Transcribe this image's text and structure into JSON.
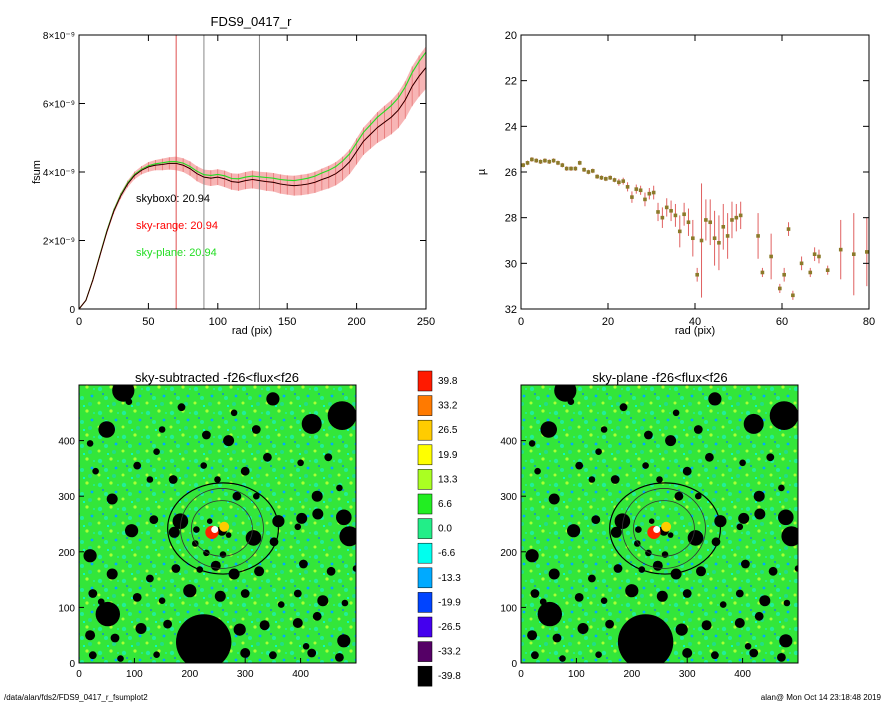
{
  "chart_data": [
    {
      "id": "profile",
      "type": "line",
      "title": "FDS9_0417_r",
      "xlabel": "rad (pix)",
      "ylabel": "fsum",
      "xlim": [
        0,
        250
      ],
      "ylim": [
        0,
        8e-09
      ],
      "xticks": [
        "0",
        "50",
        "100",
        "150",
        "200",
        "250"
      ],
      "yticks": [
        {
          "value": 0,
          "label": "0"
        },
        {
          "value": 2e-09,
          "label": "2×10⁻⁹"
        },
        {
          "value": 4e-09,
          "label": "4×10⁻⁹"
        },
        {
          "value": 6e-09,
          "label": "6×10⁻⁹"
        },
        {
          "value": 8e-09,
          "label": "8×10⁻⁹"
        }
      ],
      "vlines": [
        {
          "x": 70,
          "color": "#e05050"
        },
        {
          "x": 90,
          "color": "#888888"
        },
        {
          "x": 130,
          "color": "#888888"
        }
      ],
      "annotations": [
        {
          "text": "skybox0: 20.94",
          "color": "#000000"
        },
        {
          "text": "sky-range: 20.94",
          "color": "#ff0000"
        },
        {
          "text": "sky-plane: 20.94",
          "color": "#22dd22"
        }
      ],
      "series_x": [
        0,
        5,
        10,
        15,
        20,
        25,
        30,
        35,
        40,
        45,
        50,
        55,
        60,
        65,
        70,
        75,
        80,
        85,
        90,
        95,
        100,
        105,
        110,
        115,
        120,
        125,
        130,
        135,
        140,
        145,
        150,
        155,
        160,
        165,
        170,
        175,
        180,
        185,
        190,
        195,
        200,
        205,
        210,
        215,
        220,
        225,
        230,
        235,
        240,
        245,
        250
      ],
      "series": [
        {
          "color": "#000000",
          "values": [
            0.0,
            0.25,
            0.85,
            1.55,
            2.25,
            2.85,
            3.3,
            3.65,
            3.9,
            4.05,
            4.15,
            4.2,
            4.22,
            4.25,
            4.25,
            4.2,
            4.1,
            3.95,
            3.85,
            3.82,
            3.85,
            3.8,
            3.72,
            3.7,
            3.75,
            3.78,
            3.75,
            3.72,
            3.7,
            3.65,
            3.62,
            3.6,
            3.62,
            3.65,
            3.7,
            3.78,
            3.85,
            3.95,
            4.1,
            4.3,
            4.6,
            4.9,
            5.1,
            5.3,
            5.45,
            5.6,
            5.8,
            6.1,
            6.5,
            6.8,
            7.05
          ]
        },
        {
          "color": "#ff2020",
          "values": [
            0.0,
            0.25,
            0.85,
            1.55,
            2.25,
            2.85,
            3.3,
            3.65,
            3.9,
            4.05,
            4.15,
            4.2,
            4.22,
            4.25,
            4.25,
            4.2,
            4.1,
            3.95,
            3.85,
            3.82,
            3.85,
            3.8,
            3.72,
            3.7,
            3.75,
            3.78,
            3.75,
            3.72,
            3.7,
            3.65,
            3.62,
            3.6,
            3.62,
            3.65,
            3.7,
            3.78,
            3.85,
            3.95,
            4.1,
            4.3,
            4.6,
            4.9,
            5.1,
            5.3,
            5.45,
            5.6,
            5.8,
            6.1,
            6.5,
            6.8,
            7.05
          ]
        },
        {
          "color": "#22dd22",
          "values": [
            0.0,
            0.25,
            0.86,
            1.57,
            2.28,
            2.88,
            3.33,
            3.68,
            3.93,
            4.08,
            4.18,
            4.24,
            4.27,
            4.3,
            4.3,
            4.26,
            4.16,
            4.02,
            3.92,
            3.9,
            3.93,
            3.89,
            3.81,
            3.8,
            3.85,
            3.88,
            3.86,
            3.84,
            3.82,
            3.78,
            3.76,
            3.75,
            3.78,
            3.82,
            3.88,
            3.97,
            4.05,
            4.16,
            4.32,
            4.53,
            4.85,
            5.16,
            5.38,
            5.6,
            5.77,
            5.94,
            6.16,
            6.48,
            6.9,
            7.23,
            7.5
          ]
        }
      ],
      "error_band": [
        0.0,
        0.02,
        0.05,
        0.06,
        0.07,
        0.08,
        0.09,
        0.1,
        0.11,
        0.12,
        0.14,
        0.15,
        0.17,
        0.18,
        0.2,
        0.2,
        0.21,
        0.22,
        0.22,
        0.23,
        0.23,
        0.24,
        0.24,
        0.25,
        0.25,
        0.26,
        0.26,
        0.27,
        0.27,
        0.28,
        0.28,
        0.29,
        0.3,
        0.3,
        0.31,
        0.32,
        0.33,
        0.34,
        0.35,
        0.36,
        0.38,
        0.4,
        0.42,
        0.45,
        0.48,
        0.5,
        0.52,
        0.55,
        0.58,
        0.6,
        0.62
      ]
    },
    {
      "id": "surface-brightness",
      "type": "scatter",
      "title": "",
      "xlabel": "rad (pix)",
      "ylabel": "µ",
      "xlim": [
        0,
        80
      ],
      "ylim": [
        32,
        20
      ],
      "xticks": [
        "0",
        "20",
        "40",
        "60",
        "80"
      ],
      "yticks": [
        "20",
        "22",
        "24",
        "26",
        "28",
        "30",
        "32"
      ],
      "points": [
        {
          "x": 0.5,
          "y": 25.7,
          "e": 0.1
        },
        {
          "x": 1.5,
          "y": 25.6,
          "e": 0.1
        },
        {
          "x": 2.5,
          "y": 25.45,
          "e": 0.1
        },
        {
          "x": 3.5,
          "y": 25.5,
          "e": 0.1
        },
        {
          "x": 4.5,
          "y": 25.55,
          "e": 0.1
        },
        {
          "x": 5.5,
          "y": 25.5,
          "e": 0.1
        },
        {
          "x": 6.5,
          "y": 25.55,
          "e": 0.1
        },
        {
          "x": 7.5,
          "y": 25.5,
          "e": 0.1
        },
        {
          "x": 8.5,
          "y": 25.6,
          "e": 0.1
        },
        {
          "x": 9.5,
          "y": 25.7,
          "e": 0.1
        },
        {
          "x": 10.5,
          "y": 25.85,
          "e": 0.1
        },
        {
          "x": 11.5,
          "y": 25.85,
          "e": 0.1
        },
        {
          "x": 12.5,
          "y": 25.85,
          "e": 0.1
        },
        {
          "x": 13.5,
          "y": 25.6,
          "e": 0.1
        },
        {
          "x": 14.5,
          "y": 25.9,
          "e": 0.1
        },
        {
          "x": 15.5,
          "y": 26.0,
          "e": 0.1
        },
        {
          "x": 16.5,
          "y": 25.95,
          "e": 0.1
        },
        {
          "x": 17.5,
          "y": 26.2,
          "e": 0.1
        },
        {
          "x": 18.5,
          "y": 26.25,
          "e": 0.1
        },
        {
          "x": 19.5,
          "y": 26.3,
          "e": 0.1
        },
        {
          "x": 20.5,
          "y": 26.25,
          "e": 0.1
        },
        {
          "x": 21.5,
          "y": 26.35,
          "e": 0.1
        },
        {
          "x": 22.5,
          "y": 26.45,
          "e": 0.15
        },
        {
          "x": 23.5,
          "y": 26.4,
          "e": 0.15
        },
        {
          "x": 24.5,
          "y": 26.65,
          "e": 0.2
        },
        {
          "x": 25.5,
          "y": 27.1,
          "e": 0.25
        },
        {
          "x": 26.5,
          "y": 26.75,
          "e": 0.2
        },
        {
          "x": 27.5,
          "y": 26.8,
          "e": 0.2
        },
        {
          "x": 28.5,
          "y": 27.2,
          "e": 0.3
        },
        {
          "x": 29.5,
          "y": 26.95,
          "e": 0.25
        },
        {
          "x": 30.5,
          "y": 26.9,
          "e": 0.3
        },
        {
          "x": 31.5,
          "y": 27.75,
          "e": 0.4
        },
        {
          "x": 32.5,
          "y": 28.0,
          "e": 0.45
        },
        {
          "x": 33.5,
          "y": 27.55,
          "e": 0.4
        },
        {
          "x": 34.5,
          "y": 27.7,
          "e": 0.45
        },
        {
          "x": 35.5,
          "y": 27.9,
          "e": 0.5
        },
        {
          "x": 36.5,
          "y": 28.6,
          "e": 0.7
        },
        {
          "x": 37.5,
          "y": 27.85,
          "e": 0.5
        },
        {
          "x": 38.5,
          "y": 28.2,
          "e": 0.6
        },
        {
          "x": 39.5,
          "y": 28.9,
          "e": 0.8
        },
        {
          "x": 40.5,
          "y": 30.5,
          "e": 0.3
        },
        {
          "x": 41.5,
          "y": 29.0,
          "e": 2.5
        },
        {
          "x": 42.5,
          "y": 28.1,
          "e": 0.9
        },
        {
          "x": 43.5,
          "y": 28.2,
          "e": 1.0
        },
        {
          "x": 44.5,
          "y": 28.9,
          "e": 1.2
        },
        {
          "x": 45.5,
          "y": 29.1,
          "e": 1.2
        },
        {
          "x": 46.5,
          "y": 28.4,
          "e": 1.0
        },
        {
          "x": 47.5,
          "y": 28.8,
          "e": 1.0
        },
        {
          "x": 48.5,
          "y": 28.1,
          "e": 0.8
        },
        {
          "x": 49.5,
          "y": 28.0,
          "e": 0.6
        },
        {
          "x": 50.5,
          "y": 27.9,
          "e": 0.6
        },
        {
          "x": 54.5,
          "y": 28.8,
          "e": 1.0
        },
        {
          "x": 55.5,
          "y": 30.4,
          "e": 0.2
        },
        {
          "x": 57.5,
          "y": 29.7,
          "e": 1.0
        },
        {
          "x": 59.5,
          "y": 31.1,
          "e": 0.2
        },
        {
          "x": 60.5,
          "y": 30.5,
          "e": 0.3
        },
        {
          "x": 61.5,
          "y": 28.5,
          "e": 0.3
        },
        {
          "x": 62.5,
          "y": 31.4,
          "e": 0.2
        },
        {
          "x": 64.5,
          "y": 30.0,
          "e": 0.3
        },
        {
          "x": 66.5,
          "y": 30.4,
          "e": 0.2
        },
        {
          "x": 67.5,
          "y": 29.6,
          "e": 0.3
        },
        {
          "x": 68.5,
          "y": 29.7,
          "e": 0.3
        },
        {
          "x": 70.5,
          "y": 30.3,
          "e": 0.2
        },
        {
          "x": 73.5,
          "y": 29.4,
          "e": 1.3
        },
        {
          "x": 76.5,
          "y": 29.6,
          "e": 1.8
        },
        {
          "x": 79.5,
          "y": 29.5,
          "e": 1.5
        }
      ]
    },
    {
      "id": "sky-subtracted",
      "type": "heatmap",
      "title": "sky-subtracted -f26<flux<f26",
      "xlim": [
        0,
        500
      ],
      "ylim": [
        0,
        500
      ],
      "xticks": [
        "0",
        "100",
        "200",
        "300",
        "400"
      ],
      "yticks": [
        "0",
        "100",
        "200",
        "300",
        "400"
      ]
    },
    {
      "id": "sky-plane",
      "type": "heatmap",
      "title": "sky-plane -f26<flux<f26",
      "xlim": [
        0,
        500
      ],
      "ylim": [
        0,
        500
      ],
      "xticks": [
        "0",
        "100",
        "200",
        "300",
        "400"
      ],
      "yticks": [
        "0",
        "100",
        "200",
        "300",
        "400"
      ]
    }
  ],
  "colorbar": [
    {
      "label": "39.8",
      "color": "#ff1a00"
    },
    {
      "label": "33.2",
      "color": "#ff7a00"
    },
    {
      "label": "26.5",
      "color": "#ffcc00"
    },
    {
      "label": "19.9",
      "color": "#ffff00"
    },
    {
      "label": "13.3",
      "color": "#aaff22"
    },
    {
      "label": "6.6",
      "color": "#22ee22"
    },
    {
      "label": "0.0",
      "color": "#22ee88"
    },
    {
      "label": "-6.6",
      "color": "#00ffee"
    },
    {
      "label": "-13.3",
      "color": "#00aaff"
    },
    {
      "label": "-19.9",
      "color": "#0044ff"
    },
    {
      "label": "-26.5",
      "color": "#4400ee"
    },
    {
      "label": "-33.2",
      "color": "#550066"
    },
    {
      "label": "-39.8",
      "color": "#000000"
    }
  ],
  "footer": {
    "path": "/data/alan/fds2/FDS9_0417_r_fsumplot2",
    "stamp": "alan@  Mon Oct 14 23:18:48 2019"
  }
}
